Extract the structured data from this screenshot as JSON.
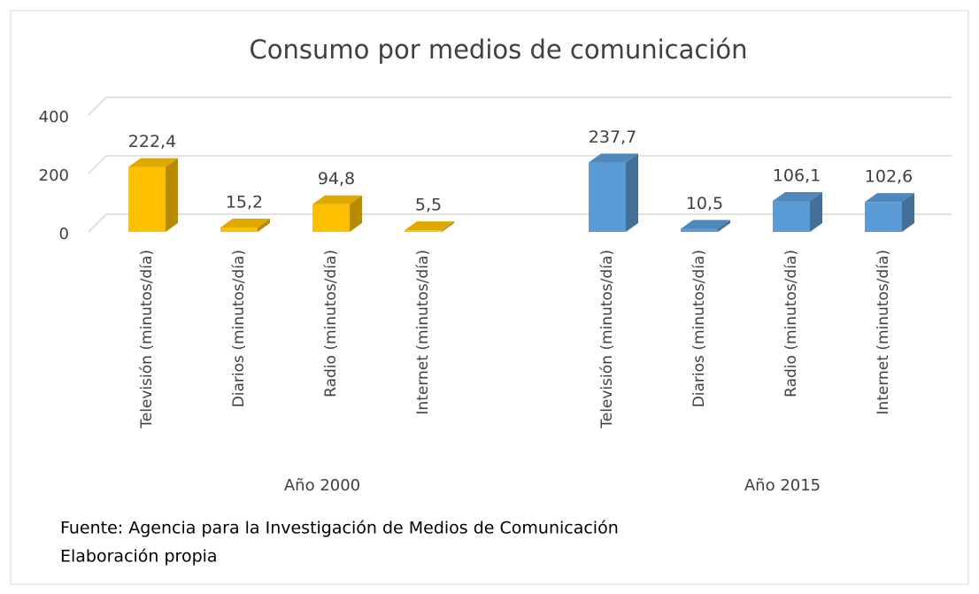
{
  "chart_data": {
    "type": "bar3d",
    "title": "Consumo por medios de comunicación",
    "categories": [
      "Televisión (minutos/día)",
      "Diarios (minutos/día)",
      "Radio (minutos/día)",
      "Internet (minutos/día)"
    ],
    "series": [
      {
        "name": "Año 2000",
        "color": "#ffc000",
        "values": [
          222.4,
          15.2,
          94.8,
          5.5
        ],
        "value_labels": [
          "222,4",
          "15,2",
          "94,8",
          "5,5"
        ]
      },
      {
        "name": "Año 2015",
        "color": "#5b9bd5",
        "values": [
          237.7,
          10.5,
          106.1,
          102.6
        ],
        "value_labels": [
          "237,7",
          "10,5",
          "106,1",
          "102,6"
        ]
      }
    ],
    "ylim": [
      0,
      400
    ],
    "yticks": [
      0,
      200,
      400
    ],
    "grid": true,
    "source": "Fuente: Agencia para la Investigación de Medios de Comunicación",
    "note": "Elaboración propia"
  }
}
